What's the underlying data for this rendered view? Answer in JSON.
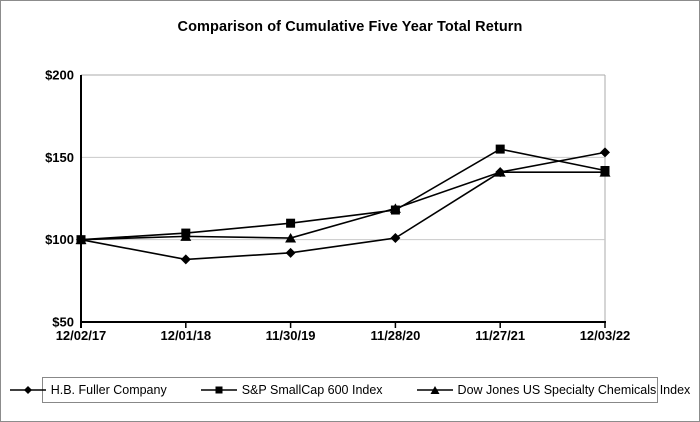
{
  "window": {
    "background": "#ffffff",
    "frame_border_color": "#8c8c8c",
    "legend_border_color": "#888888"
  },
  "chart_data": {
    "type": "line",
    "title": "Comparison of Cumulative Five Year Total Return",
    "categories": [
      "12/02/17",
      "12/01/18",
      "11/30/19",
      "11/28/20",
      "11/27/21",
      "12/03/22"
    ],
    "series": [
      {
        "name": "H.B. Fuller Company",
        "marker": "diamond",
        "values": [
          100,
          88,
          92,
          101,
          141,
          153
        ]
      },
      {
        "name": "S&P SmallCap 600 Index",
        "marker": "square",
        "values": [
          100,
          104,
          110,
          118,
          155,
          142
        ]
      },
      {
        "name": "Dow Jones US Specialty Chemicals Index",
        "marker": "triangle",
        "values": [
          100,
          102,
          101,
          119,
          141,
          141
        ]
      }
    ],
    "ylim": [
      50,
      200
    ],
    "yticks": [
      {
        "value": 200,
        "label": "$200"
      },
      {
        "value": 150,
        "label": "$150"
      },
      {
        "value": 100,
        "label": "$100"
      },
      {
        "value": 50,
        "label": "$50"
      }
    ],
    "xlabel": "",
    "ylabel": "",
    "grid": "horizontal",
    "legend_position": "bottom",
    "line_color": "#000000",
    "marker_color": "#000000",
    "gridline_color": "#c9c9c9",
    "plot_border_color": "#ababab",
    "axis_color": "#000000"
  }
}
